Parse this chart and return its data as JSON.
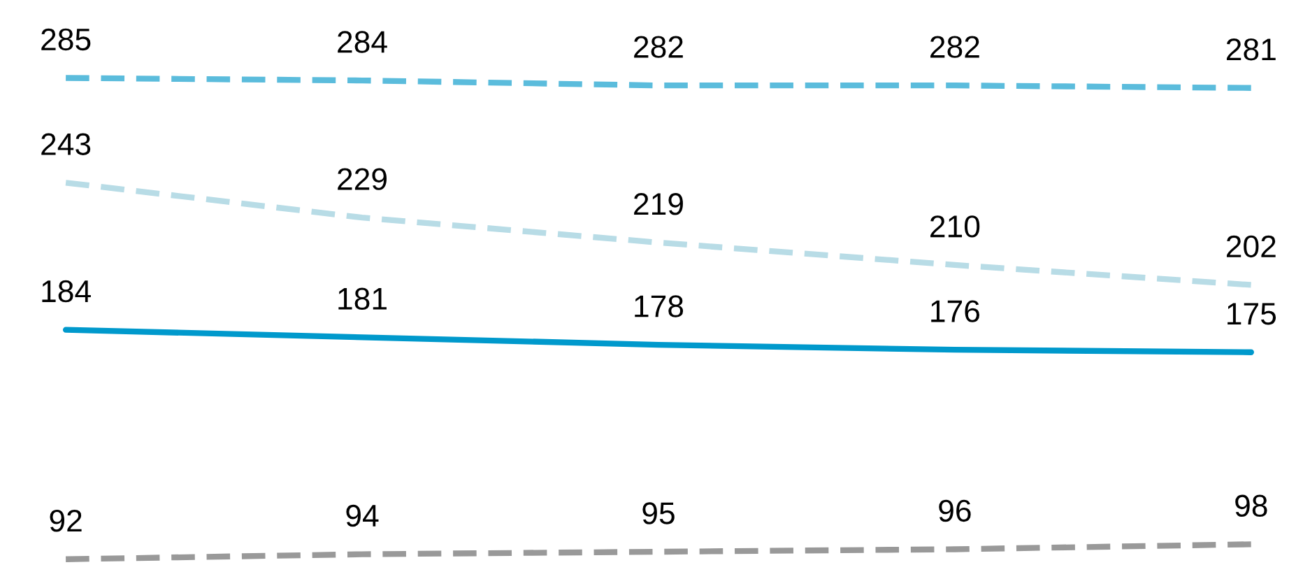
{
  "chart_data": {
    "type": "line",
    "categories": [
      null,
      null,
      null,
      null,
      null
    ],
    "data_labels": true,
    "grid": false,
    "legend": false,
    "marker": "none",
    "series": [
      {
        "color": "#5bbcdc",
        "line_style": "dashed",
        "values": [
          285,
          284,
          282,
          282,
          281
        ]
      },
      {
        "color": "#b8dce6",
        "line_style": "dashed",
        "values": [
          243,
          229,
          219,
          210,
          202
        ]
      },
      {
        "color": "#0099cc",
        "line_style": "solid",
        "values": [
          184,
          181,
          178,
          176,
          175
        ]
      },
      {
        "color": "#999999",
        "line_style": "dashed",
        "values": [
          92,
          94,
          95,
          96,
          98
        ]
      }
    ]
  }
}
